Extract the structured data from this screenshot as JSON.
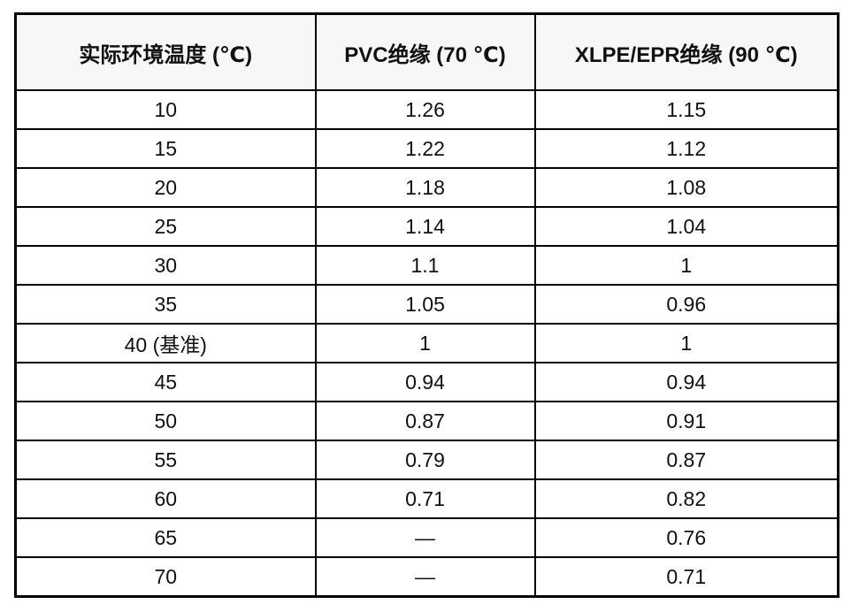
{
  "table": {
    "headers": [
      "实际环境温度 (℃)",
      "PVC绝缘 (70 ℃)",
      "XLPE/EPR绝缘 (90 ℃)"
    ],
    "rows": [
      [
        "10",
        "1.26",
        "1.15"
      ],
      [
        "15",
        "1.22",
        "1.12"
      ],
      [
        "20",
        "1.18",
        "1.08"
      ],
      [
        "25",
        "1.14",
        "1.04"
      ],
      [
        "30",
        "1.1",
        "1"
      ],
      [
        "35",
        "1.05",
        "0.96"
      ],
      [
        "40 (基准)",
        "1",
        "1"
      ],
      [
        "45",
        "0.94",
        "0.94"
      ],
      [
        "50",
        "0.87",
        "0.91"
      ],
      [
        "55",
        "0.79",
        "0.87"
      ],
      [
        "60",
        "0.71",
        "0.82"
      ],
      [
        "65",
        "—",
        "0.76"
      ],
      [
        "70",
        "—",
        "0.71"
      ]
    ],
    "colors": {
      "header_bg": "#f7f7f7",
      "border": "#000000",
      "text": "#111111",
      "page_bg": "#ffffff"
    }
  },
  "chart_data": {
    "type": "table",
    "title": "",
    "columns": [
      "实际环境温度 (℃)",
      "PVC绝缘 (70 ℃)",
      "XLPE/EPR绝缘 (90 ℃)"
    ],
    "temperatures": [
      "10",
      "15",
      "20",
      "25",
      "30",
      "35",
      "40 (基准)",
      "45",
      "50",
      "55",
      "60",
      "65",
      "70"
    ],
    "series": [
      {
        "name": "PVC绝缘 (70 ℃)",
        "values": [
          1.26,
          1.22,
          1.18,
          1.14,
          1.1,
          1.05,
          1,
          0.94,
          0.87,
          0.79,
          0.71,
          null,
          null
        ]
      },
      {
        "name": "XLPE/EPR绝缘 (90 ℃)",
        "values": [
          1.15,
          1.12,
          1.08,
          1.04,
          1,
          0.96,
          1,
          0.94,
          0.91,
          0.87,
          0.82,
          0.76,
          0.71
        ]
      }
    ],
    "missing_value_glyph": "—"
  }
}
